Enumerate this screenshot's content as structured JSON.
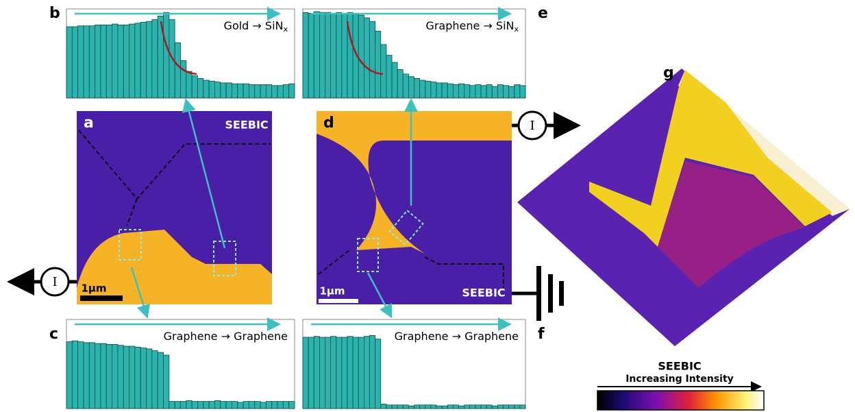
{
  "chart_data": [
    {
      "type": "bar",
      "label": "b",
      "title": "Gold → SiN",
      "title_subscript": "x",
      "color": "#2bb3ad",
      "ylim": [
        0,
        100
      ],
      "values": [
        80,
        80,
        81,
        81,
        81,
        82,
        82,
        82,
        83,
        82,
        82,
        83,
        84,
        85,
        86,
        88,
        92,
        96,
        88,
        62,
        42,
        30,
        25,
        22,
        20,
        19,
        18,
        17,
        17,
        16,
        16,
        16,
        15,
        15,
        15,
        15,
        14,
        14,
        15,
        16
      ]
    },
    {
      "type": "bar",
      "label": "e",
      "title": "Graphene → SiN",
      "title_subscript": "x",
      "color": "#2bb3ad",
      "ylim": [
        0,
        100
      ],
      "values": [
        96,
        95,
        97,
        96,
        96,
        95,
        96,
        95,
        96,
        94,
        93,
        90,
        86,
        75,
        60,
        48,
        40,
        32,
        27,
        24,
        22,
        20,
        19,
        18,
        17,
        17,
        16,
        15,
        16,
        15,
        14,
        15,
        14,
        15,
        13,
        15,
        14,
        13,
        15,
        14
      ]
    },
    {
      "type": "bar",
      "label": "c",
      "title": "Graphene → Graphene",
      "color": "#2bb3ad",
      "ylim": [
        0,
        100
      ],
      "values": [
        75,
        76,
        75,
        74,
        74,
        73,
        73,
        72,
        72,
        71,
        70,
        70,
        69,
        68,
        67,
        65,
        63,
        60,
        8,
        8,
        8,
        9,
        8,
        8,
        8,
        8,
        9,
        8,
        8,
        8,
        7,
        8,
        8,
        8,
        7,
        8,
        8,
        8,
        8,
        8
      ]
    },
    {
      "type": "bar",
      "label": "f",
      "title": "Graphene → Graphene",
      "color": "#2bb3ad",
      "ylim": [
        0,
        100
      ],
      "values": [
        80,
        80,
        81,
        80,
        80,
        81,
        80,
        80,
        81,
        80,
        80,
        81,
        82,
        78,
        5,
        4,
        4,
        4,
        4,
        3,
        4,
        4,
        4,
        4,
        3,
        3,
        4,
        4,
        3,
        4,
        4,
        4,
        4,
        4,
        3,
        4,
        4,
        4,
        4,
        4
      ]
    }
  ],
  "images": [
    {
      "label": "a",
      "caption": "SEEBIC",
      "scale_bar": "1μm"
    },
    {
      "label": "d",
      "caption": "SEEBIC",
      "scale_bar": "1μm"
    },
    {
      "label": "g"
    }
  ],
  "current_symbol": "I",
  "colorbar": {
    "title": "SEEBIC",
    "subtitle": "Increasing Intensity"
  }
}
